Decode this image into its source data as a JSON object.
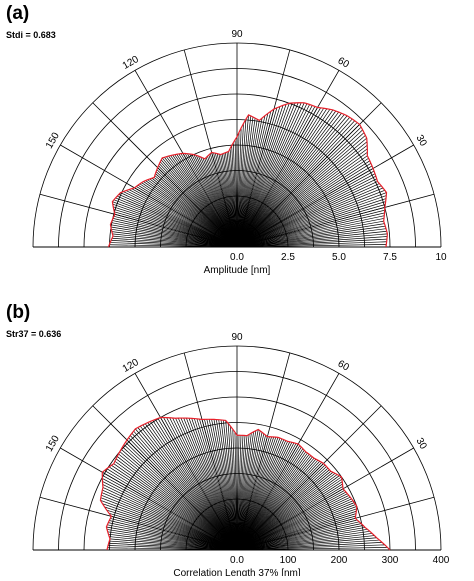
{
  "chart_data": [
    {
      "type": "polar-rose",
      "panel": "(a)",
      "stat_label": "Stdi = 0.683",
      "axis_label": "Amplitude [nm]",
      "angle_labels": [
        "30",
        "60",
        "90",
        "120",
        "150"
      ],
      "tick_labels": [
        "0.0",
        "2.5",
        "5.0",
        "7.5",
        "10"
      ],
      "tick_values": [
        0,
        2.5,
        5,
        7.5,
        10
      ],
      "rmax": 10,
      "spokes": 180,
      "envelope_color": "#e8202a",
      "angle_deg": [
        0,
        5,
        10,
        15,
        20,
        25,
        30,
        35,
        40,
        45,
        50,
        55,
        60,
        65,
        70,
        75,
        80,
        85,
        90,
        95,
        100,
        105,
        110,
        115,
        120,
        125,
        130,
        135,
        140,
        145,
        150,
        155,
        160,
        165,
        170,
        175,
        180
      ],
      "r": [
        7.3,
        7.4,
        7.3,
        7.5,
        7.8,
        7.6,
        7.7,
        7.8,
        8.3,
        8.5,
        8.4,
        8.2,
        7.9,
        7.8,
        7.5,
        7.0,
        6.3,
        6.5,
        5.4,
        4.7,
        4.6,
        4.8,
        4.6,
        5.0,
        5.3,
        5.5,
        5.7,
        5.5,
        5.3,
        5.6,
        5.8,
        6.3,
        6.5,
        6.2,
        6.3,
        6.1,
        6.3
      ]
    },
    {
      "type": "polar-rose",
      "panel": "(b)",
      "stat_label": "Str37 = 0.636",
      "axis_label": "Correlation Length 37% [nm]",
      "angle_labels": [
        "30",
        "60",
        "90",
        "120",
        "150"
      ],
      "tick_labels": [
        "0.0",
        "100",
        "200",
        "300",
        "400"
      ],
      "tick_values": [
        0,
        100,
        200,
        300,
        400
      ],
      "rmax": 400,
      "spokes": 180,
      "envelope_color": "#e8202a",
      "angle_deg": [
        0,
        5,
        10,
        15,
        20,
        25,
        30,
        35,
        40,
        45,
        50,
        55,
        60,
        65,
        70,
        75,
        80,
        85,
        90,
        95,
        100,
        105,
        110,
        115,
        120,
        125,
        130,
        135,
        140,
        145,
        150,
        155,
        160,
        165,
        170,
        175,
        180
      ],
      "r": [
        300,
        275,
        255,
        240,
        250,
        245,
        240,
        250,
        240,
        240,
        235,
        235,
        240,
        235,
        235,
        230,
        240,
        225,
        225,
        255,
        260,
        265,
        275,
        285,
        300,
        305,
        310,
        305,
        300,
        295,
        305,
        290,
        285,
        255,
        260,
        250,
        255
      ]
    }
  ]
}
